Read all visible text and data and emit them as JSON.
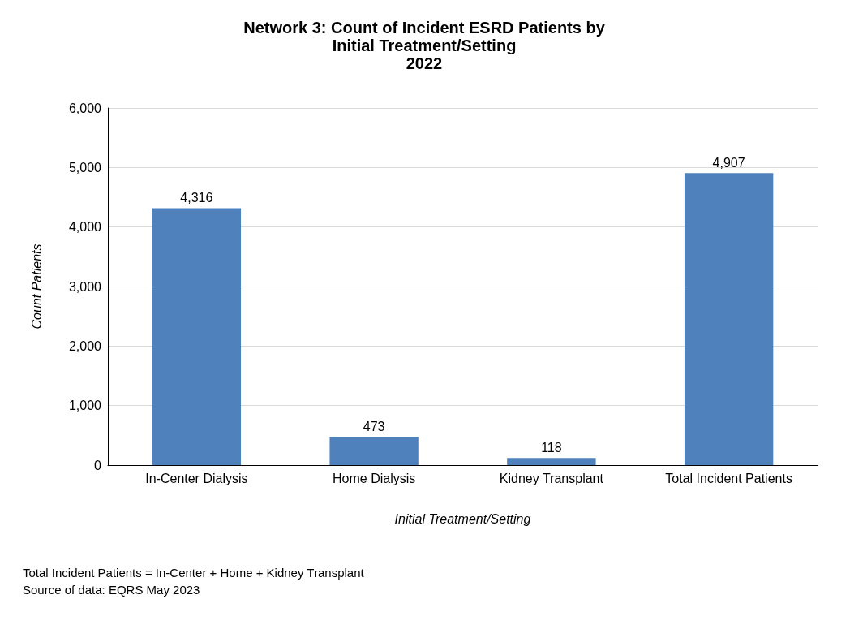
{
  "chart_data": {
    "type": "bar",
    "title": "Network 3: Count of Incident ESRD Patients by\nInitial Treatment/Setting\n2022",
    "xlabel": "Initial Treatment/Setting",
    "ylabel": "Count Patients",
    "categories": [
      "In-Center Dialysis",
      "Home Dialysis",
      "Kidney Transplant",
      "Total Incident Patients"
    ],
    "values": [
      4316,
      473,
      118,
      4907
    ],
    "value_labels": [
      "4,316",
      "473",
      "118",
      "4,907"
    ],
    "color": "#4f81bd",
    "ylim": [
      0,
      6000
    ],
    "yticks": [
      {
        "value": 0,
        "label": "0"
      },
      {
        "value": 1000,
        "label": "1,000"
      },
      {
        "value": 2000,
        "label": "2,000"
      },
      {
        "value": 3000,
        "label": "3,000"
      },
      {
        "value": 4000,
        "label": "4,000"
      },
      {
        "value": 5000,
        "label": "5,000"
      },
      {
        "value": 6000,
        "label": "6,000"
      }
    ],
    "grid": "y",
    "annotations": [
      "Total Incident Patients = In-Center + Home + Kidney Transplant",
      "Source of data: EQRS May 2023"
    ]
  }
}
